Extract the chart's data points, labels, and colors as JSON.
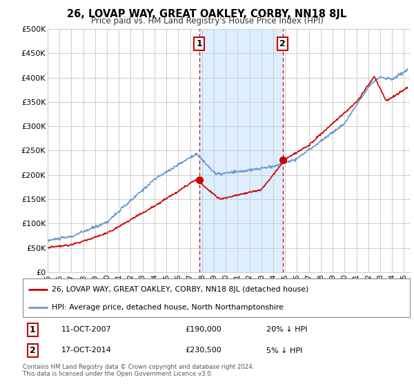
{
  "title": "26, LOVAP WAY, GREAT OAKLEY, CORBY, NN18 8JL",
  "subtitle": "Price paid vs. HM Land Registry's House Price Index (HPI)",
  "xmin": 1995.0,
  "xmax": 2025.5,
  "ymin": 0,
  "ymax": 500000,
  "yticks": [
    0,
    50000,
    100000,
    150000,
    200000,
    250000,
    300000,
    350000,
    400000,
    450000,
    500000
  ],
  "ytick_labels": [
    "£0",
    "£50K",
    "£100K",
    "£150K",
    "£200K",
    "£250K",
    "£300K",
    "£350K",
    "£400K",
    "£450K",
    "£500K"
  ],
  "xtick_years": [
    1995,
    1996,
    1997,
    1998,
    1999,
    2000,
    2001,
    2002,
    2003,
    2004,
    2005,
    2006,
    2007,
    2008,
    2009,
    2010,
    2011,
    2012,
    2013,
    2014,
    2015,
    2016,
    2017,
    2018,
    2019,
    2020,
    2021,
    2022,
    2023,
    2024,
    2025
  ],
  "red_line_color": "#cc0000",
  "blue_line_color": "#6699cc",
  "sale1_x": 2007.78,
  "sale1_y": 190000,
  "sale1_label": "1",
  "sale1_date": "11-OCT-2007",
  "sale1_price": "£190,000",
  "sale1_hpi": "20% ↓ HPI",
  "sale2_x": 2014.79,
  "sale2_y": 230500,
  "sale2_label": "2",
  "sale2_date": "17-OCT-2014",
  "sale2_price": "£230,500",
  "sale2_hpi": "5% ↓ HPI",
  "shaded_region_color": "#ddeeff",
  "vline_color": "#cc0000",
  "legend_red_label": "26, LOVAP WAY, GREAT OAKLEY, CORBY, NN18 8JL (detached house)",
  "legend_blue_label": "HPI: Average price, detached house, North Northamptonshire",
  "footer_text": "Contains HM Land Registry data © Crown copyright and database right 2024.\nThis data is licensed under the Open Government Licence v3.0.",
  "background_color": "#ffffff",
  "plot_bg_color": "#ffffff",
  "grid_color": "#cccccc"
}
